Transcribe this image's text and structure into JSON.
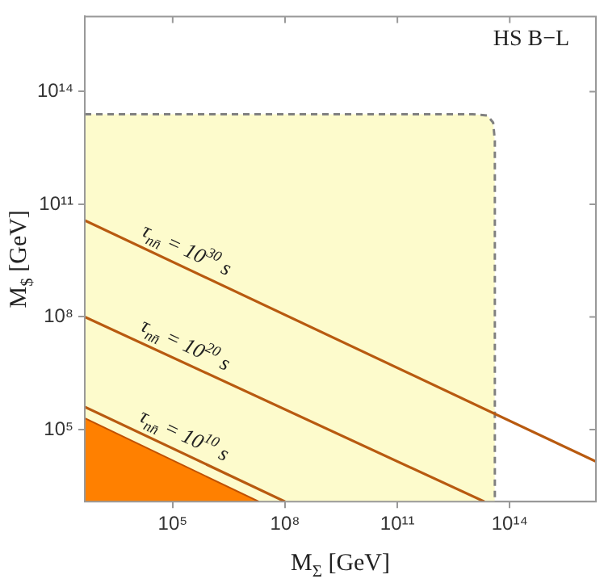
{
  "chart_data": {
    "type": "line",
    "title": "HS B−L",
    "xlabel": "M$_{Σ}$ [GeV]",
    "ylabel": "M$_{$}$ [GeV]",
    "log": "xy",
    "grid": false,
    "legend": false,
    "marker": "none",
    "xlim": [
      450,
      2e+16
    ],
    "ylim": [
      1200,
      1e+16
    ],
    "xticks": [
      {
        "value": 100000.0,
        "label": "10⁵"
      },
      {
        "value": 100000000.0,
        "label": "10⁸"
      },
      {
        "value": 100000000000.0,
        "label": "10¹¹"
      },
      {
        "value": 100000000000000.0,
        "label": "10¹⁴"
      }
    ],
    "yticks": [
      {
        "value": 100000.0,
        "label": "10⁵"
      },
      {
        "value": 100000000.0,
        "label": "10⁸"
      },
      {
        "value": 100000000000.0,
        "label": "10¹¹"
      },
      {
        "value": 100000000000000.0,
        "label": "10¹⁴"
      }
    ],
    "series": [
      {
        "type": "area",
        "color": "#fdfbcc",
        "line_style": "dashed",
        "x": [
          450,
          10000000000000.0,
          25000000000000.0,
          36000000000000.0,
          40000000000000.0,
          40000000000000.0
        ],
        "values": [
          25000000000000.0,
          25000000000000.0,
          23000000000000.0,
          15000000000000.0,
          5000000000000.0,
          1200
        ]
      },
      {
        "type": "area",
        "color": "#ff8000",
        "x": [
          450,
          20000000.0
        ],
        "values": [
          200000.0,
          1200
        ]
      },
      {
        "type": "line",
        "color": "#b85a10",
        "x": [
          450,
          2e+16
        ],
        "values": [
          37000000000.0,
          14000.0
        ]
      },
      {
        "type": "line",
        "color": "#b85a10",
        "x": [
          450,
          21000000000000.0
        ],
        "values": [
          100000000.0,
          1200
        ]
      },
      {
        "type": "line",
        "color": "#b85a10",
        "x": [
          450,
          100000000.0
        ],
        "values": [
          400000.0,
          1200
        ]
      }
    ],
    "annotations": [
      {
        "text": "τ$_{nn̄}$ = 10$^{30}$ s",
        "x": 150000.0,
        "y": 2400000000.0
      },
      {
        "text": "τ$_{nn̄}$ = 10$^{20}$ s",
        "x": 140000.0,
        "y": 7100000.0
      },
      {
        "text": "τ$_{nn̄}$ = 10$^{10}$ s",
        "x": 130000.0,
        "y": 27600.0
      }
    ]
  }
}
